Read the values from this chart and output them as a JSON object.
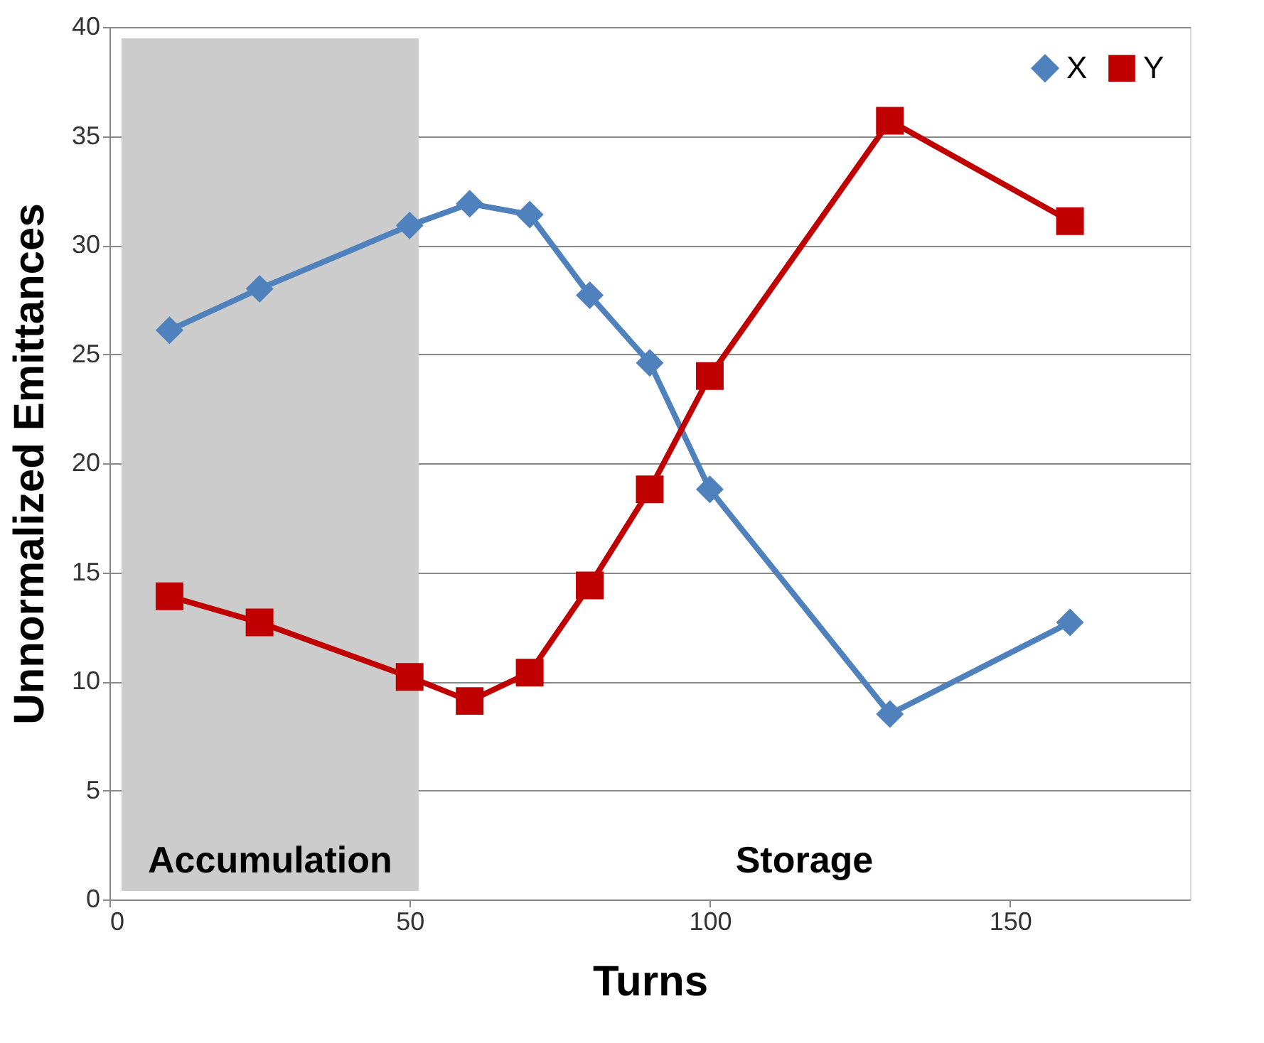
{
  "chart_data": {
    "type": "line",
    "xlabel": "Turns",
    "ylabel": "Unnormalized Emittances",
    "xlim": [
      0,
      180
    ],
    "xticks": [
      0,
      50,
      100,
      150
    ],
    "ylim": [
      0,
      40
    ],
    "yticks": [
      0,
      5,
      10,
      15,
      20,
      25,
      30,
      35,
      40
    ],
    "x": [
      10,
      25,
      50,
      60,
      70,
      80,
      90,
      100,
      130,
      160
    ],
    "series": [
      {
        "name": "X",
        "color": "#4f81bd",
        "marker": "diamond",
        "values": [
          26.1,
          28.0,
          30.9,
          31.9,
          31.4,
          27.7,
          24.6,
          18.8,
          8.5,
          12.7
        ]
      },
      {
        "name": "Y",
        "color": "#c00000",
        "marker": "square",
        "values": [
          13.9,
          12.7,
          10.2,
          9.1,
          10.4,
          14.4,
          18.8,
          24.0,
          35.7,
          31.1
        ]
      }
    ],
    "bands": [
      {
        "axis": "x",
        "from": 2,
        "to": 51.5,
        "label": "Accumulation",
        "color": "#cccccc"
      }
    ],
    "annotations": [
      "Storage"
    ],
    "grid": "y",
    "legend": "top right",
    "line_style": "solid"
  }
}
